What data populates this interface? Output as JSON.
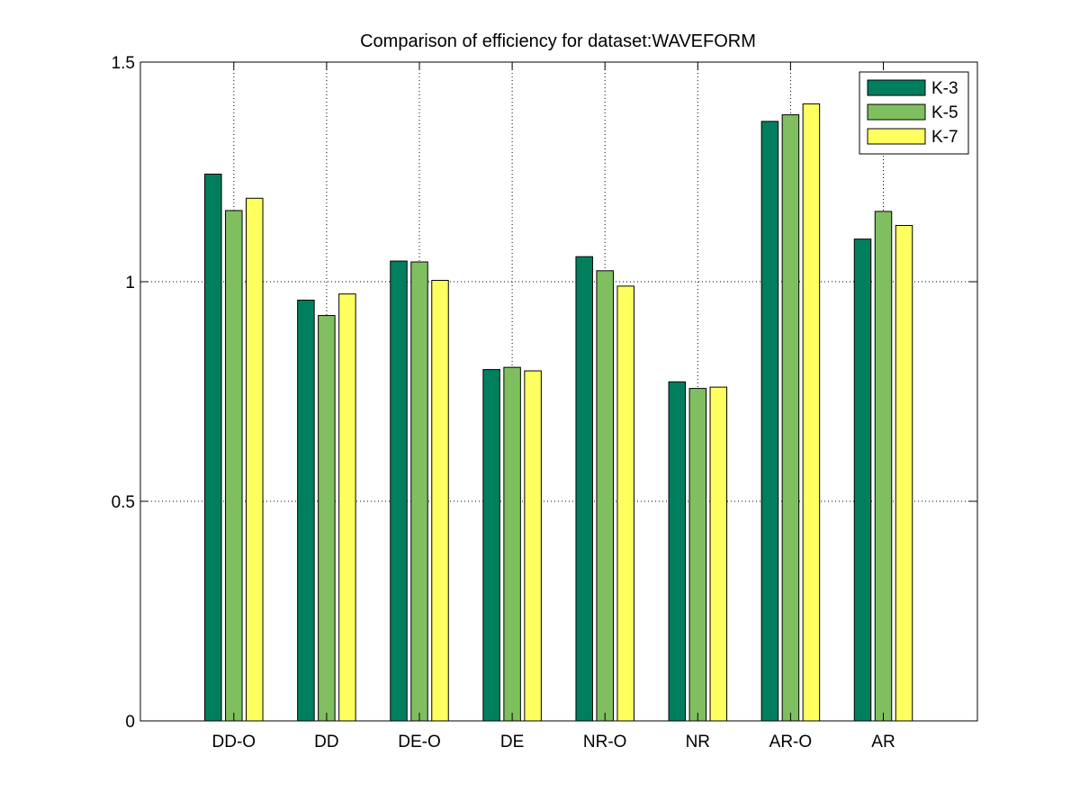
{
  "chart_data": {
    "type": "bar",
    "title": "Comparison of efficiency for dataset:WAVEFORM",
    "xlabel": "",
    "ylabel": "",
    "categories": [
      "DD-O",
      "DD",
      "DE-O",
      "DE",
      "NR-O",
      "NR",
      "AR-O",
      "AR"
    ],
    "series": [
      {
        "name": "K-3",
        "color": "#007f5f",
        "values": [
          1.245,
          0.958,
          1.047,
          0.8,
          1.057,
          0.772,
          1.365,
          1.097
        ]
      },
      {
        "name": "K-5",
        "color": "#7fbf5f",
        "values": [
          1.162,
          0.923,
          1.045,
          0.805,
          1.025,
          0.757,
          1.38,
          1.16
        ]
      },
      {
        "name": "K-7",
        "color": "#ffff5f",
        "values": [
          1.19,
          0.972,
          1.003,
          0.797,
          0.99,
          0.76,
          1.405,
          1.128
        ]
      }
    ],
    "ylim": [
      0,
      1.5
    ],
    "yticks": [
      0,
      0.5,
      1,
      1.5
    ],
    "ytick_labels": [
      "0",
      "0.5",
      "1",
      "1.5"
    ],
    "grid": true,
    "legend_position": "top-right"
  }
}
